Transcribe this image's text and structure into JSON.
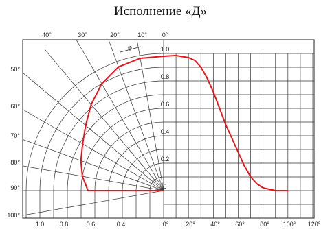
{
  "title": "Исполнение «Д»",
  "chart_data": {
    "type": "line",
    "title": "Исполнение «Д»",
    "series_color": "#e8141b",
    "polar": {
      "angle_ticks_top": [
        "40°",
        "30°",
        "20°",
        "10°",
        "0°"
      ],
      "angle_ticks_left": [
        "50°",
        "60°",
        "70°",
        "80°",
        "90°",
        "100°"
      ],
      "radius_ticks_bottom": [
        "1.0",
        "0.8",
        "0.6",
        "0.4"
      ],
      "angle_symbol": "φ",
      "curve": {
        "angle_deg": [
          0,
          10,
          20,
          30,
          40,
          50,
          60,
          70,
          80,
          90
        ],
        "intensity": [
          0.98,
          0.98,
          0.96,
          0.9,
          0.82,
          0.74,
          0.68,
          0.64,
          0.6,
          0.55
        ]
      }
    },
    "cartesian": {
      "x_ticks": [
        "0°",
        "20°",
        "40°",
        "60°",
        "80°",
        "100°",
        "120°"
      ],
      "y_ticks": [
        "1.0",
        "0.8",
        "0.6",
        "0.4",
        "0.2",
        "0"
      ],
      "ylim": [
        0,
        1.0
      ],
      "xlim": [
        0,
        120
      ],
      "curve": {
        "x": [
          0,
          10,
          20,
          25,
          30,
          35,
          40,
          45,
          50,
          55,
          60,
          65,
          70,
          75,
          80,
          85,
          90,
          100
        ],
        "y": [
          0.98,
          0.985,
          0.97,
          0.95,
          0.9,
          0.82,
          0.72,
          0.6,
          0.48,
          0.38,
          0.28,
          0.18,
          0.1,
          0.05,
          0.02,
          0.01,
          0.0,
          0.0
        ]
      }
    }
  }
}
